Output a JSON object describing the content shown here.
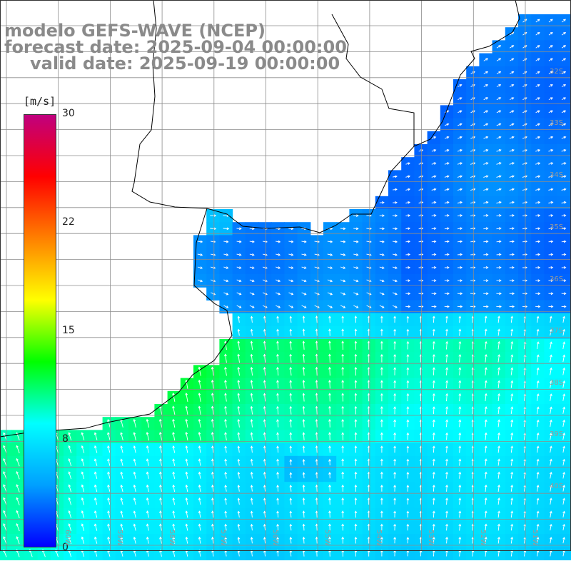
{
  "title": {
    "line1": "modelo GEFS-WAVE (NCEP)",
    "line2": "forecast date: 2025-09-04 00:00:00",
    "line3": "valid date: 2025-09-19 00:00:00"
  },
  "colorbar": {
    "units": "[m/s]",
    "min": 0,
    "max": 30,
    "ticks": [
      "30",
      "22",
      "15",
      "8",
      "0"
    ],
    "tick_values": [
      30,
      22,
      15,
      8,
      0
    ],
    "colors": [
      "#0000ff",
      "#00a0ff",
      "#00ffff",
      "#00ff00",
      "#ffff00",
      "#ff8000",
      "#ff0000",
      "#c0007f"
    ]
  },
  "latitude_labels": [
    "32S",
    "33S",
    "34S",
    "35S",
    "36S",
    "37S",
    "38S",
    "39S",
    "40S"
  ],
  "longitude_labels": [
    "60W",
    "59W",
    "58W",
    "57W",
    "56W",
    "55W",
    "54W",
    "53W",
    "52W",
    "51W"
  ],
  "colors": {
    "land": "#ffffff",
    "coast": "#000000",
    "grid": "#8c8c8c",
    "arrows": "#ffffff",
    "title": "#8a8a8a"
  }
}
